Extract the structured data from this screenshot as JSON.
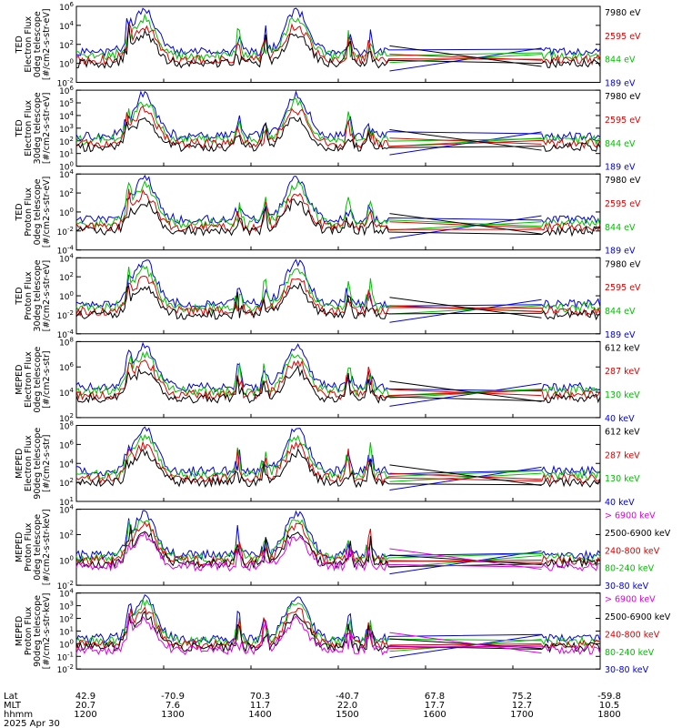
{
  "chart_data": [
    {
      "type": "line",
      "ylabel": [
        "TED",
        "Electron Flux",
        "0deg telescope",
        "[#/cm2-s-str-eV]"
      ],
      "ylog": true,
      "ylim_exp": [
        -2,
        6
      ],
      "ytick_labels": [
        "10^6",
        "10^4",
        "10^2",
        "10^0",
        "10^-2"
      ],
      "series": [
        {
          "name": "7980 eV",
          "color": "#000000"
        },
        {
          "name": "2595 eV",
          "color": "#e00000"
        },
        {
          "name": "844 eV",
          "color": "#00c000"
        },
        {
          "name": "189 eV",
          "color": "#0000e0"
        }
      ]
    },
    {
      "type": "line",
      "ylabel": [
        "TED",
        "Electron Flux",
        "30deg telescope",
        "[#/cm2-s-str-eV]"
      ],
      "ylog": true,
      "ylim_exp": [
        0,
        6
      ],
      "ytick_labels": [
        "10^6",
        "10^5",
        "10^4",
        "10^3",
        "10^2",
        "10^1",
        "10^0"
      ],
      "series": [
        {
          "name": "7980 eV",
          "color": "#000000"
        },
        {
          "name": "2595 eV",
          "color": "#e00000"
        },
        {
          "name": "844 eV",
          "color": "#00c000"
        },
        {
          "name": "189 eV",
          "color": "#0000e0"
        }
      ]
    },
    {
      "type": "line",
      "ylabel": [
        "TED",
        "Proton Flux",
        "0deg telescope",
        "[#/cm2-s-str-eV]"
      ],
      "ylog": true,
      "ylim_exp": [
        -5,
        5
      ],
      "ytick_labels": [
        "10^4",
        "10^2",
        "10^0",
        "10^-2",
        "10^-4"
      ],
      "series": [
        {
          "name": "7980 eV",
          "color": "#000000"
        },
        {
          "name": "2595 eV",
          "color": "#e00000"
        },
        {
          "name": "844 eV",
          "color": "#00c000"
        },
        {
          "name": "189 eV",
          "color": "#0000e0"
        }
      ]
    },
    {
      "type": "line",
      "ylabel": [
        "TED",
        "Proton Flux",
        "30deg telescope",
        "[#/cm2-s-str-eV]"
      ],
      "ylog": true,
      "ylim_exp": [
        -4,
        5
      ],
      "ytick_labels": [
        "10^4",
        "10^2",
        "10^0",
        "10^-2",
        "10^-4"
      ],
      "series": [
        {
          "name": "7980 eV",
          "color": "#000000"
        },
        {
          "name": "2595 eV",
          "color": "#e00000"
        },
        {
          "name": "844 eV",
          "color": "#00c000"
        },
        {
          "name": "189 eV",
          "color": "#0000e0"
        }
      ]
    },
    {
      "type": "line",
      "ylabel": [
        "MEPED",
        "Electron Flux",
        "0deg telescope",
        "[#/cm2-s-str]"
      ],
      "ylog": true,
      "ylim_exp": [
        1,
        8
      ],
      "ytick_labels": [
        "10^8",
        "10^6",
        "10^4",
        "10^2"
      ],
      "series": [
        {
          "name": "612 keV",
          "color": "#000000"
        },
        {
          "name": "287 keV",
          "color": "#e00000"
        },
        {
          "name": "130 keV",
          "color": "#00c000"
        },
        {
          "name": "40 keV",
          "color": "#0000e0"
        }
      ]
    },
    {
      "type": "line",
      "ylabel": [
        "MEPED",
        "Electron Flux",
        "90deg telescope",
        "[#/cm2-s-str]"
      ],
      "ylog": true,
      "ylim_exp": [
        1,
        8
      ],
      "ytick_labels": [
        "10^8",
        "10^6",
        "10^4",
        "10^2",
        "10^1"
      ],
      "series": [
        {
          "name": "612 keV",
          "color": "#000000"
        },
        {
          "name": "287 keV",
          "color": "#e00000"
        },
        {
          "name": "130 keV",
          "color": "#00c000"
        },
        {
          "name": "40 keV",
          "color": "#0000e0"
        }
      ]
    },
    {
      "type": "line",
      "ylabel": [
        "MEPED",
        "Proton Flux",
        "0deg telescope",
        "[#/cm2-s-str-keV]"
      ],
      "ylog": true,
      "ylim_exp": [
        -2,
        6
      ],
      "ytick_labels": [
        "10^4",
        "10^2",
        "10^0",
        "10^-2"
      ],
      "series": [
        {
          "name": "> 6900 keV",
          "color": "#e000e0"
        },
        {
          "name": "2500-6900 keV",
          "color": "#000000"
        },
        {
          "name": "240-800 keV",
          "color": "#e00000"
        },
        {
          "name": "80-240 keV",
          "color": "#00c000"
        },
        {
          "name": "30-80 keV",
          "color": "#0000e0"
        }
      ]
    },
    {
      "type": "line",
      "ylabel": [
        "MEPED",
        "Proton Flux",
        "90deg telescope",
        "[#/cm2-s-str-keV]"
      ],
      "ylog": true,
      "ylim_exp": [
        -2,
        5
      ],
      "ytick_labels": [
        "10^4",
        "10^3",
        "10^2",
        "10^1",
        "10^0",
        "10^-1",
        "10^-2"
      ],
      "series": [
        {
          "name": "> 6900 keV",
          "color": "#e000e0"
        },
        {
          "name": "2500-6900 keV",
          "color": "#000000"
        },
        {
          "name": "240-800 keV",
          "color": "#e00000"
        },
        {
          "name": "80-240 keV",
          "color": "#00c000"
        },
        {
          "name": "30-80 keV",
          "color": "#0000e0"
        }
      ]
    }
  ],
  "xaxis": {
    "row_labels": [
      "Lat",
      "MLT",
      "hhmm"
    ],
    "ticks": [
      {
        "lat": "42.9",
        "mlt": "20.7",
        "hhmm": "1200"
      },
      {
        "lat": "-70.9",
        "mlt": "7.6",
        "hhmm": "1300"
      },
      {
        "lat": "70.3",
        "mlt": "11.7",
        "hhmm": "1400"
      },
      {
        "lat": "-40.7",
        "mlt": "22.0",
        "hhmm": "1500"
      },
      {
        "lat": "67.8",
        "mlt": "17.7",
        "hhmm": "1600"
      },
      {
        "lat": "75.2",
        "mlt": "12.7",
        "hhmm": "1700"
      },
      {
        "lat": "-59.8",
        "mlt": "10.5",
        "hhmm": "1800"
      }
    ],
    "date": "2025 Apr 30"
  }
}
